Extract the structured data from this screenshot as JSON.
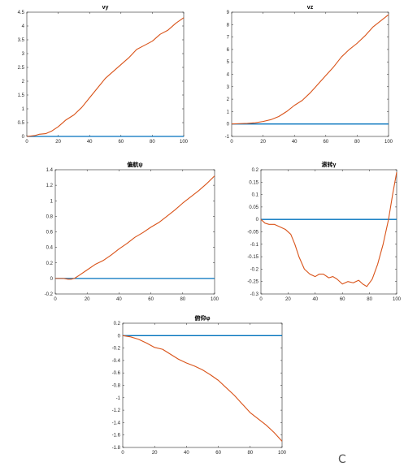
{
  "chart_data": [
    {
      "type": "line",
      "title": "vy",
      "xlim": [
        0,
        100
      ],
      "ylim": [
        0,
        4.5
      ],
      "xticks": [
        0,
        20,
        40,
        60,
        80,
        100
      ],
      "yticks": [
        0,
        0.5,
        1,
        1.5,
        2,
        2.5,
        3,
        3.5,
        4,
        4.5
      ],
      "series": [
        {
          "color": "#0072bd",
          "x": [
            0,
            100
          ],
          "y": [
            0,
            0
          ]
        },
        {
          "color": "#d95319",
          "x": [
            0,
            5,
            8,
            12,
            16,
            20,
            25,
            30,
            35,
            40,
            45,
            50,
            55,
            60,
            65,
            70,
            75,
            80,
            85,
            90,
            95,
            100
          ],
          "y": [
            0,
            0.03,
            0.08,
            0.1,
            0.2,
            0.35,
            0.6,
            0.78,
            1.05,
            1.4,
            1.75,
            2.1,
            2.35,
            2.6,
            2.85,
            3.15,
            3.3,
            3.45,
            3.7,
            3.85,
            4.1,
            4.3
          ]
        }
      ]
    },
    {
      "type": "line",
      "title": "vz",
      "xlim": [
        0,
        100
      ],
      "ylim": [
        -1,
        9
      ],
      "xticks": [
        0,
        20,
        40,
        60,
        80,
        100
      ],
      "yticks": [
        -1,
        0,
        1,
        2,
        3,
        4,
        5,
        6,
        7,
        8,
        9
      ],
      "series": [
        {
          "color": "#0072bd",
          "x": [
            0,
            100
          ],
          "y": [
            0,
            0
          ]
        },
        {
          "color": "#d95319",
          "x": [
            0,
            5,
            10,
            15,
            20,
            25,
            30,
            35,
            40,
            45,
            50,
            55,
            60,
            65,
            70,
            75,
            80,
            85,
            90,
            95,
            100
          ],
          "y": [
            0,
            0.03,
            0.05,
            0.1,
            0.2,
            0.35,
            0.6,
            1.0,
            1.5,
            1.9,
            2.5,
            3.2,
            3.9,
            4.6,
            5.4,
            6.0,
            6.5,
            7.1,
            7.8,
            8.3,
            8.8
          ]
        }
      ]
    },
    {
      "type": "line",
      "title": "偏航ψ",
      "xlim": [
        0,
        100
      ],
      "ylim": [
        -0.2,
        1.4
      ],
      "xticks": [
        0,
        20,
        40,
        60,
        80,
        100
      ],
      "yticks": [
        -0.2,
        0,
        0.2,
        0.4,
        0.6,
        0.8,
        1,
        1.2,
        1.4
      ],
      "series": [
        {
          "color": "#0072bd",
          "x": [
            0,
            100
          ],
          "y": [
            0,
            0
          ]
        },
        {
          "color": "#d95319",
          "x": [
            0,
            5,
            8,
            10,
            12,
            15,
            20,
            25,
            30,
            35,
            40,
            45,
            50,
            55,
            60,
            65,
            70,
            75,
            80,
            85,
            90,
            95,
            100
          ],
          "y": [
            0,
            0,
            -0.01,
            -0.01,
            0,
            0.04,
            0.11,
            0.18,
            0.23,
            0.3,
            0.38,
            0.45,
            0.53,
            0.59,
            0.66,
            0.72,
            0.8,
            0.88,
            0.97,
            1.05,
            1.13,
            1.22,
            1.32
          ]
        }
      ]
    },
    {
      "type": "line",
      "title": "滚转γ",
      "xlim": [
        0,
        100
      ],
      "ylim": [
        -0.3,
        0.2
      ],
      "xticks": [
        0,
        20,
        40,
        60,
        80,
        100
      ],
      "yticks": [
        -0.3,
        -0.25,
        -0.2,
        -0.15,
        -0.1,
        -0.05,
        0,
        0.05,
        0.1,
        0.15,
        0.2
      ],
      "series": [
        {
          "color": "#0072bd",
          "x": [
            0,
            100
          ],
          "y": [
            0,
            0
          ]
        },
        {
          "color": "#d95319",
          "x": [
            0,
            3,
            6,
            10,
            14,
            18,
            22,
            25,
            28,
            32,
            36,
            40,
            43,
            46,
            50,
            53,
            56,
            60,
            64,
            68,
            72,
            75,
            78,
            82,
            86,
            90,
            94,
            97,
            100
          ],
          "y": [
            0,
            -0.015,
            -0.02,
            -0.02,
            -0.03,
            -0.04,
            -0.06,
            -0.1,
            -0.15,
            -0.2,
            -0.22,
            -0.23,
            -0.22,
            -0.22,
            -0.235,
            -0.23,
            -0.24,
            -0.26,
            -0.25,
            -0.255,
            -0.245,
            -0.26,
            -0.27,
            -0.24,
            -0.18,
            -0.1,
            0.0,
            0.1,
            0.19
          ]
        }
      ]
    },
    {
      "type": "line",
      "title": "俯仰φ",
      "xlim": [
        0,
        100
      ],
      "ylim": [
        -1.8,
        0.2
      ],
      "xticks": [
        0,
        20,
        40,
        60,
        80,
        100
      ],
      "yticks": [
        -1.8,
        -1.6,
        -1.4,
        -1.2,
        -1,
        -0.8,
        -0.6,
        -0.4,
        -0.2,
        0,
        0.2
      ],
      "series": [
        {
          "color": "#0072bd",
          "x": [
            0,
            100
          ],
          "y": [
            0,
            0
          ]
        },
        {
          "color": "#d95319",
          "x": [
            0,
            5,
            10,
            15,
            20,
            25,
            30,
            35,
            40,
            45,
            50,
            55,
            60,
            65,
            70,
            75,
            80,
            85,
            90,
            95,
            100
          ],
          "y": [
            0,
            -0.02,
            -0.06,
            -0.12,
            -0.19,
            -0.22,
            -0.3,
            -0.38,
            -0.44,
            -0.49,
            -0.55,
            -0.63,
            -0.72,
            -0.84,
            -0.96,
            -1.1,
            -1.24,
            -1.34,
            -1.44,
            -1.56,
            -1.7
          ]
        }
      ]
    }
  ],
  "corner_mark": "C"
}
